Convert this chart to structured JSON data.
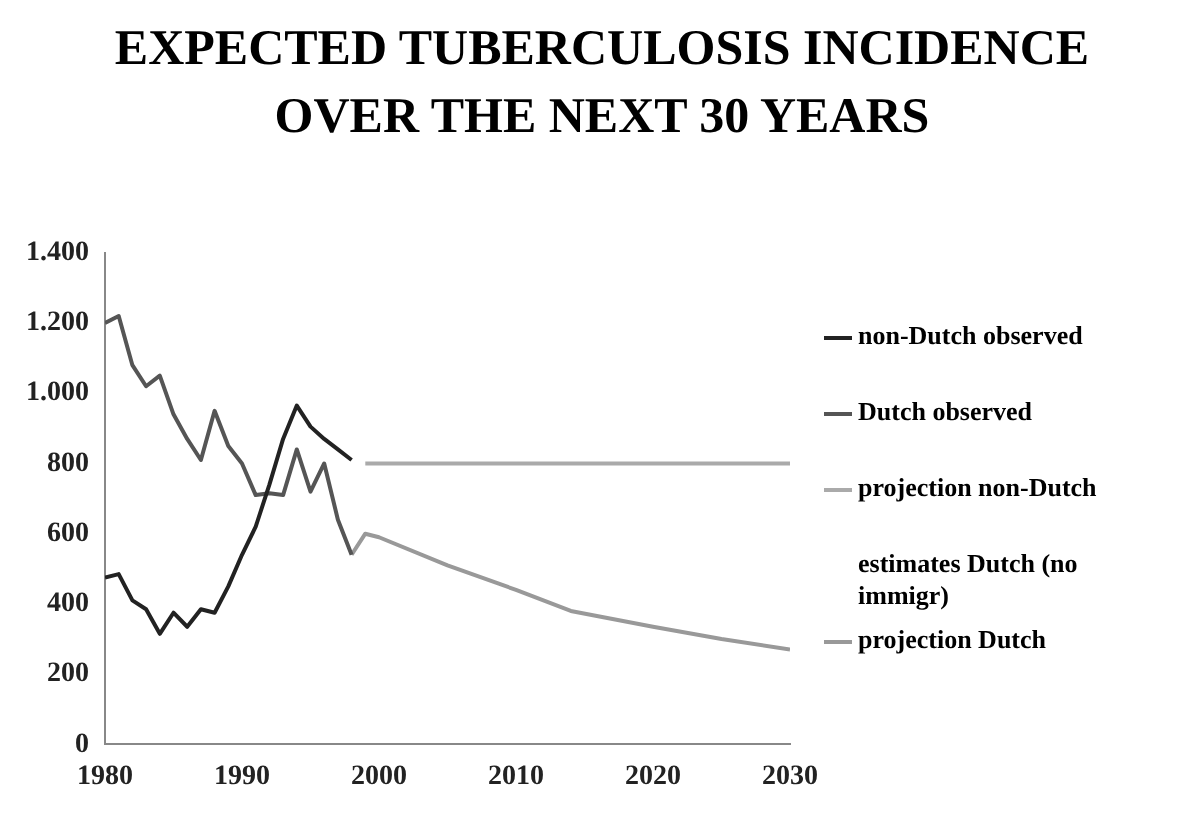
{
  "chart_data": {
    "type": "line",
    "title": "EXPECTED TUBERCULOSIS INCIDENCE OVER THE NEXT 30 YEARS",
    "xlim": [
      1980,
      2030
    ],
    "xticks": [
      1980,
      1990,
      2000,
      2010,
      2020,
      2030
    ],
    "ylim": [
      0,
      1400
    ],
    "yticks": [
      0,
      200,
      400,
      600,
      800,
      {
        "value": 1000,
        "label": "1.000"
      },
      {
        "value": 1200,
        "label": "1.200"
      },
      {
        "value": 1400,
        "label": "1.400"
      }
    ],
    "grid": false,
    "legend": "right",
    "marker": "none",
    "line_style": "solid",
    "series": [
      {
        "name": "non-Dutch observed",
        "color": "#222222",
        "x": [
          1980,
          1981,
          1982,
          1983,
          1984,
          1985,
          1986,
          1987,
          1988,
          1989,
          1990,
          1991,
          1992,
          1993,
          1994,
          1995,
          1996,
          1997,
          1998
        ],
        "values": [
          475,
          485,
          410,
          385,
          315,
          375,
          335,
          385,
          375,
          450,
          540,
          620,
          740,
          870,
          965,
          905,
          870,
          840,
          810
        ]
      },
      {
        "name": "Dutch observed",
        "color": "#555555",
        "x": [
          1980,
          1981,
          1982,
          1983,
          1984,
          1985,
          1986,
          1987,
          1988,
          1989,
          1990,
          1991,
          1992,
          1993,
          1994,
          1995,
          1996,
          1997,
          1998
        ],
        "values": [
          1200,
          1220,
          1080,
          1020,
          1050,
          940,
          870,
          810,
          950,
          850,
          800,
          710,
          715,
          710,
          840,
          720,
          800,
          640,
          540
        ]
      },
      {
        "name": "projection non-Dutch",
        "color": "#aaaaaa",
        "x": [
          1999,
          2030
        ],
        "values": [
          800,
          800
        ]
      },
      {
        "name": "estimates Dutch (no immigr)"
      },
      {
        "name": "projection Dutch",
        "color": "#999999",
        "x": [
          1998,
          1999,
          2000,
          2005,
          2010,
          2014,
          2020,
          2025,
          2030
        ],
        "values": [
          540,
          600,
          590,
          510,
          440,
          380,
          335,
          300,
          270
        ]
      }
    ]
  }
}
